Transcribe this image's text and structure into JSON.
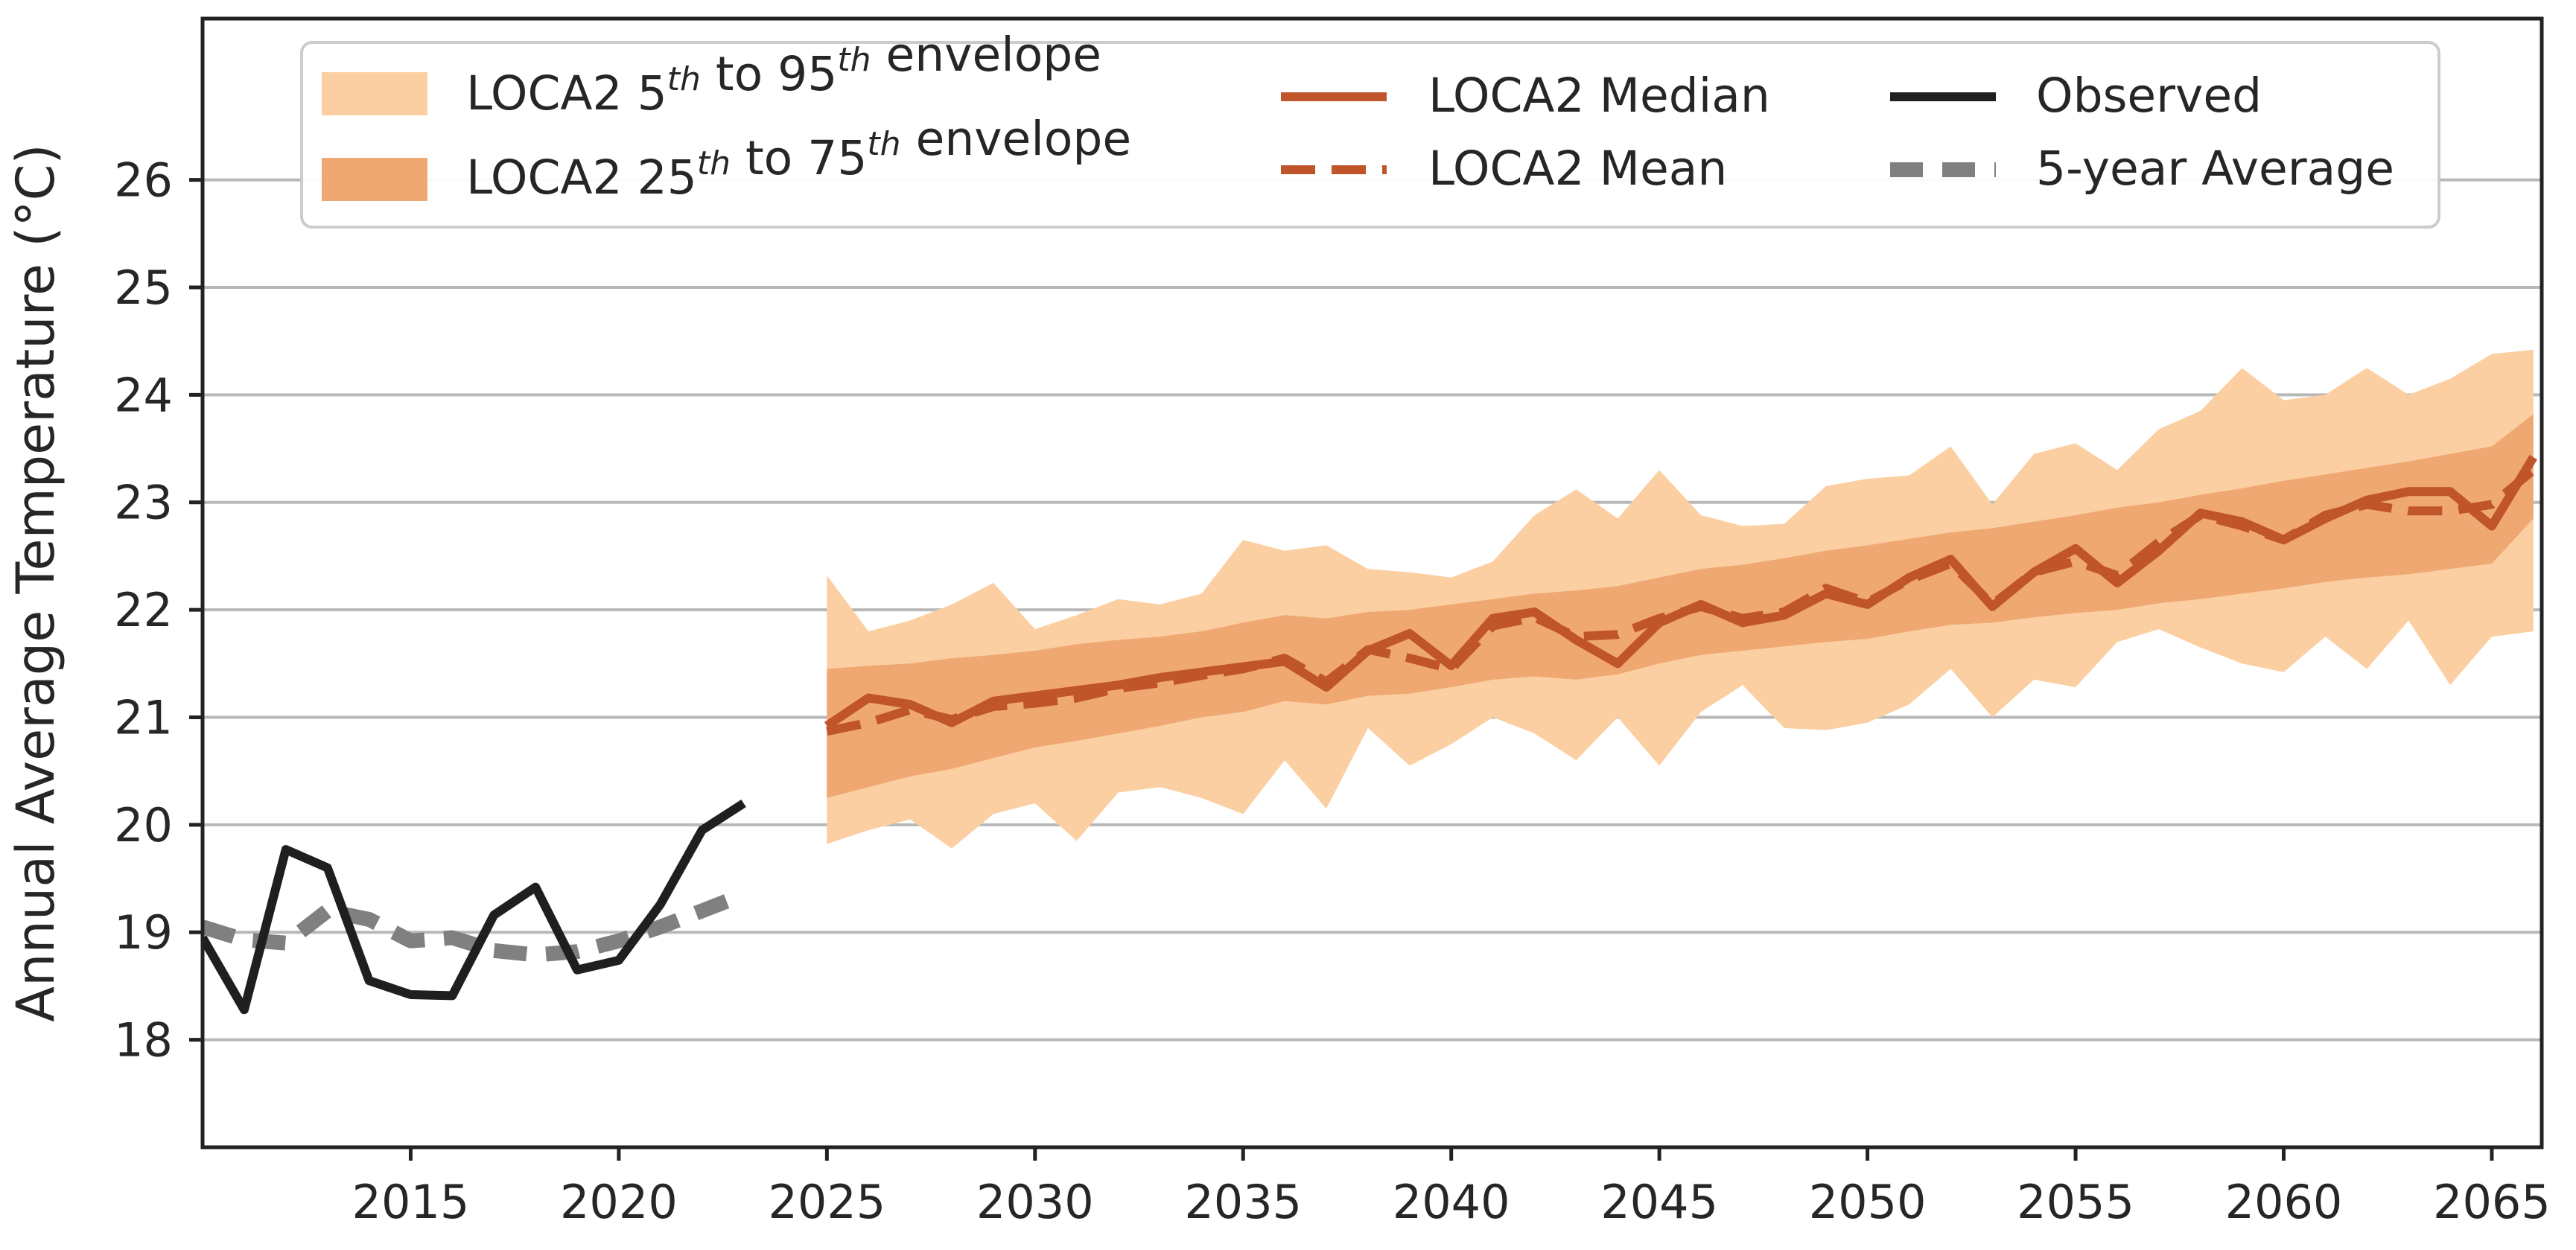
{
  "chart_data": {
    "type": "line",
    "title": "",
    "xlabel": "",
    "ylabel": "Annual Average Temperature (°C)",
    "xlim": [
      2010.0,
      2066.2
    ],
    "ylim": [
      17.0,
      27.5
    ],
    "grid": "horizontal",
    "legend_position": "top",
    "x_ticks": [
      2015,
      2020,
      2025,
      2030,
      2035,
      2040,
      2045,
      2050,
      2055,
      2060,
      2065
    ],
    "x_tick_labels": [
      "2015",
      "2020",
      "2025",
      "2030",
      "2035",
      "2040",
      "2045",
      "2050",
      "2055",
      "2060",
      "2065"
    ],
    "y_ticks": [
      18,
      19,
      20,
      21,
      22,
      23,
      24,
      25,
      26
    ],
    "y_tick_labels": [
      "18",
      "19",
      "20",
      "21",
      "22",
      "23",
      "24",
      "25",
      "26"
    ],
    "legend": {
      "envelope_5_95": {
        "prefix": "LOCA2 5",
        "sup1": "th",
        "middle": " to 95",
        "sup2": "th",
        "suffix": " envelope"
      },
      "envelope_25_75": {
        "prefix": "LOCA2 25",
        "sup1": "th",
        "middle": " to 75",
        "sup2": "th",
        "suffix": " envelope"
      },
      "median": "LOCA2 Median",
      "mean": "LOCA2 Mean",
      "observed": "Observed",
      "avg5": "5-year Average"
    },
    "colors": {
      "env_outer": "#fbcfa2",
      "env_inner": "#efa872",
      "median": "#c0542a",
      "mean": "#c0542a",
      "observed": "#1f1f1f",
      "avg5": "#808080",
      "grid": "#b8b8b8",
      "axis": "#222222"
    },
    "observed": {
      "x": [
        2010,
        2011,
        2012,
        2013,
        2014,
        2015,
        2016,
        2017,
        2018,
        2019,
        2020,
        2021,
        2022,
        2023
      ],
      "y": [
        18.95,
        18.28,
        19.77,
        19.6,
        18.55,
        18.42,
        18.41,
        19.16,
        19.42,
        18.65,
        18.74,
        19.26,
        19.95,
        20.2
      ]
    },
    "five_year_avg": {
      "x": [
        2010,
        2011,
        2012,
        2013,
        2014,
        2015,
        2016,
        2017,
        2018,
        2019,
        2020,
        2021,
        2022,
        2023
      ],
      "y": [
        19.05,
        18.93,
        18.9,
        19.2,
        19.12,
        18.92,
        18.95,
        18.83,
        18.79,
        18.82,
        18.92,
        19.05,
        19.2,
        19.35
      ]
    },
    "projection_years": [
      2025,
      2026,
      2027,
      2028,
      2029,
      2030,
      2031,
      2032,
      2033,
      2034,
      2035,
      2036,
      2037,
      2038,
      2039,
      2040,
      2041,
      2042,
      2043,
      2044,
      2045,
      2046,
      2047,
      2048,
      2049,
      2050,
      2051,
      2052,
      2053,
      2054,
      2055,
      2056,
      2057,
      2058,
      2059,
      2060,
      2061,
      2062,
      2063,
      2064,
      2065,
      2066
    ],
    "median": [
      20.92,
      21.18,
      21.12,
      20.95,
      21.15,
      21.2,
      21.25,
      21.3,
      21.37,
      21.42,
      21.47,
      21.52,
      21.28,
      21.62,
      21.78,
      21.48,
      21.92,
      21.98,
      21.72,
      21.5,
      21.88,
      22.05,
      21.88,
      21.95,
      22.15,
      22.05,
      22.3,
      22.47,
      22.03,
      22.35,
      22.57,
      22.25,
      22.55,
      22.9,
      22.82,
      22.65,
      22.85,
      23.02,
      23.1,
      23.1,
      22.78,
      23.42
    ],
    "mean": [
      20.87,
      20.95,
      21.07,
      20.98,
      21.1,
      21.13,
      21.18,
      21.27,
      21.32,
      21.39,
      21.45,
      21.55,
      21.33,
      21.63,
      21.55,
      21.45,
      21.85,
      21.93,
      21.75,
      21.77,
      21.92,
      22.03,
      21.92,
      21.98,
      22.2,
      22.07,
      22.28,
      22.43,
      22.05,
      22.35,
      22.45,
      22.32,
      22.63,
      22.88,
      22.78,
      22.65,
      22.88,
      22.98,
      22.92,
      22.92,
      22.98,
      23.3
    ],
    "p25": [
      20.25,
      20.35,
      20.45,
      20.52,
      20.62,
      20.72,
      20.78,
      20.85,
      20.92,
      21.0,
      21.05,
      21.15,
      21.12,
      21.2,
      21.22,
      21.28,
      21.35,
      21.38,
      21.35,
      21.4,
      21.5,
      21.58,
      21.62,
      21.66,
      21.7,
      21.73,
      21.8,
      21.86,
      21.88,
      21.93,
      21.97,
      22.0,
      22.06,
      22.1,
      22.15,
      22.2,
      22.26,
      22.3,
      22.33,
      22.38,
      22.43,
      22.85
    ],
    "p75": [
      21.45,
      21.48,
      21.5,
      21.55,
      21.58,
      21.62,
      21.68,
      21.72,
      21.75,
      21.8,
      21.88,
      21.95,
      21.92,
      21.98,
      22.0,
      22.05,
      22.1,
      22.15,
      22.18,
      22.22,
      22.3,
      22.38,
      22.42,
      22.48,
      22.55,
      22.6,
      22.66,
      22.72,
      22.76,
      22.82,
      22.88,
      22.95,
      23.0,
      23.07,
      23.13,
      23.2,
      23.26,
      23.32,
      23.38,
      23.45,
      23.52,
      23.82
    ],
    "p05": [
      19.82,
      19.95,
      20.05,
      19.78,
      20.1,
      20.2,
      19.85,
      20.3,
      20.35,
      20.25,
      20.1,
      20.6,
      20.15,
      20.9,
      20.55,
      20.75,
      21.0,
      20.85,
      20.6,
      21.0,
      20.55,
      21.05,
      21.3,
      20.9,
      20.88,
      20.95,
      21.12,
      21.45,
      21.0,
      21.35,
      21.28,
      21.7,
      21.82,
      21.65,
      21.5,
      21.42,
      21.75,
      21.45,
      21.9,
      21.3,
      21.75,
      21.8
    ],
    "p95": [
      22.32,
      21.8,
      21.9,
      22.05,
      22.25,
      21.82,
      21.95,
      22.1,
      22.05,
      22.15,
      22.65,
      22.55,
      22.6,
      22.38,
      22.35,
      22.3,
      22.45,
      22.88,
      23.12,
      22.85,
      23.3,
      22.88,
      22.78,
      22.8,
      23.15,
      23.22,
      23.25,
      23.52,
      22.98,
      23.45,
      23.55,
      23.3,
      23.68,
      23.85,
      24.25,
      23.95,
      24.0,
      24.25,
      24.0,
      24.15,
      24.38,
      24.42
    ]
  }
}
